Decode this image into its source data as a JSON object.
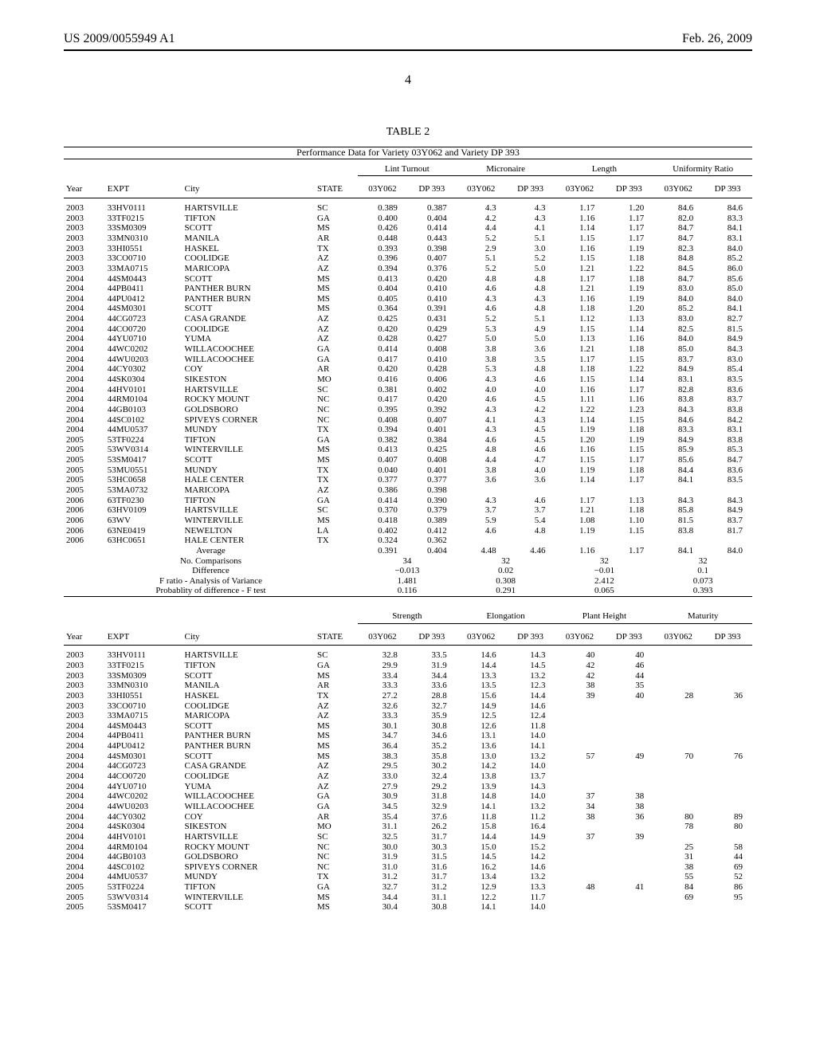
{
  "header": {
    "pub_no": "US 2009/0055949 A1",
    "pub_date": "Feb. 26, 2009"
  },
  "page_number": "4",
  "table": {
    "heading": "TABLE 2",
    "caption": "Performance Data for Variety 03Y062 and Variety DP 393",
    "col_headers": {
      "year": "Year",
      "expt": "EXPT",
      "city": "City",
      "state": "STATE",
      "v1": "03Y062",
      "v2": "DP 393"
    },
    "section1": {
      "groups": [
        "Lint Turnout",
        "Micronaire",
        "Length",
        "Uniformity Ratio"
      ],
      "rows": [
        [
          "2003",
          "33HV0111",
          "HARTSVILLE",
          "SC",
          "0.389",
          "0.387",
          "4.3",
          "4.3",
          "1.17",
          "1.20",
          "84.6",
          "84.6"
        ],
        [
          "2003",
          "33TF0215",
          "TIFTON",
          "GA",
          "0.400",
          "0.404",
          "4.2",
          "4.3",
          "1.16",
          "1.17",
          "82.0",
          "83.3"
        ],
        [
          "2003",
          "33SM0309",
          "SCOTT",
          "MS",
          "0.426",
          "0.414",
          "4.4",
          "4.1",
          "1.14",
          "1.17",
          "84.7",
          "84.1"
        ],
        [
          "2003",
          "33MN0310",
          "MANILA",
          "AR",
          "0.448",
          "0.443",
          "5.2",
          "5.1",
          "1.15",
          "1.17",
          "84.7",
          "83.1"
        ],
        [
          "2003",
          "33HI0551",
          "HASKEL",
          "TX",
          "0.393",
          "0.398",
          "2.9",
          "3.0",
          "1.16",
          "1.19",
          "82.3",
          "84.0"
        ],
        [
          "2003",
          "33CO0710",
          "COOLIDGE",
          "AZ",
          "0.396",
          "0.407",
          "5.1",
          "5.2",
          "1.15",
          "1.18",
          "84.8",
          "85.2"
        ],
        [
          "2003",
          "33MA0715",
          "MARICOPA",
          "AZ",
          "0.394",
          "0.376",
          "5.2",
          "5.0",
          "1.21",
          "1.22",
          "84.5",
          "86.0"
        ],
        [
          "2004",
          "44SM0443",
          "SCOTT",
          "MS",
          "0.413",
          "0.420",
          "4.8",
          "4.8",
          "1.17",
          "1.18",
          "84.7",
          "85.6"
        ],
        [
          "2004",
          "44PB0411",
          "PANTHER BURN",
          "MS",
          "0.404",
          "0.410",
          "4.6",
          "4.8",
          "1.21",
          "1.19",
          "83.0",
          "85.0"
        ],
        [
          "2004",
          "44PU0412",
          "PANTHER BURN",
          "MS",
          "0.405",
          "0.410",
          "4.3",
          "4.3",
          "1.16",
          "1.19",
          "84.0",
          "84.0"
        ],
        [
          "2004",
          "44SM0301",
          "SCOTT",
          "MS",
          "0.364",
          "0.391",
          "4.6",
          "4.8",
          "1.18",
          "1.20",
          "85.2",
          "84.1"
        ],
        [
          "2004",
          "44CG0723",
          "CASA GRANDE",
          "AZ",
          "0.425",
          "0.431",
          "5.2",
          "5.1",
          "1.12",
          "1.13",
          "83.0",
          "82.7"
        ],
        [
          "2004",
          "44CO0720",
          "COOLIDGE",
          "AZ",
          "0.420",
          "0.429",
          "5.3",
          "4.9",
          "1.15",
          "1.14",
          "82.5",
          "81.5"
        ],
        [
          "2004",
          "44YU0710",
          "YUMA",
          "AZ",
          "0.428",
          "0.427",
          "5.0",
          "5.0",
          "1.13",
          "1.16",
          "84.0",
          "84.9"
        ],
        [
          "2004",
          "44WC0202",
          "WILLACOOCHEE",
          "GA",
          "0.414",
          "0.408",
          "3.8",
          "3.6",
          "1.21",
          "1.18",
          "85.0",
          "84.3"
        ],
        [
          "2004",
          "44WU0203",
          "WILLACOOCHEE",
          "GA",
          "0.417",
          "0.410",
          "3.8",
          "3.5",
          "1.17",
          "1.15",
          "83.7",
          "83.0"
        ],
        [
          "2004",
          "44CY0302",
          "COY",
          "AR",
          "0.420",
          "0.428",
          "5.3",
          "4.8",
          "1.18",
          "1.22",
          "84.9",
          "85.4"
        ],
        [
          "2004",
          "44SK0304",
          "SIKESTON",
          "MO",
          "0.416",
          "0.406",
          "4.3",
          "4.6",
          "1.15",
          "1.14",
          "83.1",
          "83.5"
        ],
        [
          "2004",
          "44HV0101",
          "HARTSVILLE",
          "SC",
          "0.381",
          "0.402",
          "4.0",
          "4.0",
          "1.16",
          "1.17",
          "82.8",
          "83.6"
        ],
        [
          "2004",
          "44RM0104",
          "ROCKY MOUNT",
          "NC",
          "0.417",
          "0.420",
          "4.6",
          "4.5",
          "1.11",
          "1.16",
          "83.8",
          "83.7"
        ],
        [
          "2004",
          "44GB0103",
          "GOLDSBORO",
          "NC",
          "0.395",
          "0.392",
          "4.3",
          "4.2",
          "1.22",
          "1.23",
          "84.3",
          "83.8"
        ],
        [
          "2004",
          "44SC0102",
          "SPIVEYS CORNER",
          "NC",
          "0.408",
          "0.407",
          "4.1",
          "4.3",
          "1.14",
          "1.15",
          "84.6",
          "84.2"
        ],
        [
          "2004",
          "44MU0537",
          "MUNDY",
          "TX",
          "0.394",
          "0.401",
          "4.3",
          "4.5",
          "1.19",
          "1.18",
          "83.3",
          "83.1"
        ],
        [
          "2005",
          "53TF0224",
          "TIFTON",
          "GA",
          "0.382",
          "0.384",
          "4.6",
          "4.5",
          "1.20",
          "1.19",
          "84.9",
          "83.8"
        ],
        [
          "2005",
          "53WV0314",
          "WINTERVILLE",
          "MS",
          "0.413",
          "0.425",
          "4.8",
          "4.6",
          "1.16",
          "1.15",
          "85.9",
          "85.3"
        ],
        [
          "2005",
          "53SM0417",
          "SCOTT",
          "MS",
          "0.407",
          "0.408",
          "4.4",
          "4.7",
          "1.15",
          "1.17",
          "85.6",
          "84.7"
        ],
        [
          "2005",
          "53MU0551",
          "MUNDY",
          "TX",
          "0.040",
          "0.401",
          "3.8",
          "4.0",
          "1.19",
          "1.18",
          "84.4",
          "83.6"
        ],
        [
          "2005",
          "53HC0658",
          "HALE CENTER",
          "TX",
          "0.377",
          "0.377",
          "3.6",
          "3.6",
          "1.14",
          "1.17",
          "84.1",
          "83.5"
        ],
        [
          "2005",
          "53MA0732",
          "MARICOPA",
          "AZ",
          "0.386",
          "0.398",
          "",
          "",
          "",
          "",
          "",
          ""
        ],
        [
          "2006",
          "63TF0230",
          "TIFTON",
          "GA",
          "0.414",
          "0.390",
          "4.3",
          "4.6",
          "1.17",
          "1.13",
          "84.3",
          "84.3"
        ],
        [
          "2006",
          "63HV0109",
          "HARTSVILLE",
          "SC",
          "0.370",
          "0.379",
          "3.7",
          "3.7",
          "1.21",
          "1.18",
          "85.8",
          "84.9"
        ],
        [
          "2006",
          "63WV",
          "WINTERVILLE",
          "MS",
          "0.418",
          "0.389",
          "5.9",
          "5.4",
          "1.08",
          "1.10",
          "81.5",
          "83.7"
        ],
        [
          "2006",
          "63NE0419",
          "NEWELTON",
          "LA",
          "0.402",
          "0.412",
          "4.6",
          "4.8",
          "1.19",
          "1.15",
          "83.8",
          "81.7"
        ],
        [
          "2006",
          "63HC0651",
          "HALE CENTER",
          "TX",
          "0.324",
          "0.362",
          "",
          "",
          "",
          "",
          "",
          ""
        ]
      ],
      "summary": [
        [
          "Average",
          "0.391",
          "0.404",
          "4.48",
          "4.46",
          "1.16",
          "1.17",
          "84.1",
          "84.0"
        ],
        [
          "No. Comparisons",
          "34",
          "",
          "32",
          "",
          "32",
          "",
          "32",
          ""
        ],
        [
          "Difference",
          "−0.013",
          "",
          "0.02",
          "",
          "−0.01",
          "",
          "0.1",
          ""
        ],
        [
          "F ratio - Analysis of Variance",
          "1.481",
          "",
          "0.308",
          "",
          "2.412",
          "",
          "0.073",
          ""
        ],
        [
          "Probablity of difference - F test",
          "0.116",
          "",
          "0.291",
          "",
          "0.065",
          "",
          "0.393",
          ""
        ]
      ]
    },
    "section2": {
      "groups": [
        "Strength",
        "Elongation",
        "Plant Height",
        "Maturity"
      ],
      "rows": [
        [
          "2003",
          "33HV0111",
          "HARTSVILLE",
          "SC",
          "32.8",
          "33.5",
          "14.6",
          "14.3",
          "40",
          "40",
          "",
          ""
        ],
        [
          "2003",
          "33TF0215",
          "TIFTON",
          "GA",
          "29.9",
          "31.9",
          "14.4",
          "14.5",
          "42",
          "46",
          "",
          ""
        ],
        [
          "2003",
          "33SM0309",
          "SCOTT",
          "MS",
          "33.4",
          "34.4",
          "13.3",
          "13.2",
          "42",
          "44",
          "",
          ""
        ],
        [
          "2003",
          "33MN0310",
          "MANILA",
          "AR",
          "33.3",
          "33.6",
          "13.5",
          "12.3",
          "38",
          "35",
          "",
          ""
        ],
        [
          "2003",
          "33HI0551",
          "HASKEL",
          "TX",
          "27.2",
          "28.8",
          "15.6",
          "14.4",
          "39",
          "40",
          "28",
          "36"
        ],
        [
          "2003",
          "33CO0710",
          "COOLIDGE",
          "AZ",
          "32.6",
          "32.7",
          "14.9",
          "14.6",
          "",
          "",
          "",
          ""
        ],
        [
          "2003",
          "33MA0715",
          "MARICOPA",
          "AZ",
          "33.3",
          "35.9",
          "12.5",
          "12.4",
          "",
          "",
          "",
          ""
        ],
        [
          "2004",
          "44SM0443",
          "SCOTT",
          "MS",
          "30.1",
          "30.8",
          "12.6",
          "11.8",
          "",
          "",
          "",
          ""
        ],
        [
          "2004",
          "44PB0411",
          "PANTHER BURN",
          "MS",
          "34.7",
          "34.6",
          "13.1",
          "14.0",
          "",
          "",
          "",
          ""
        ],
        [
          "2004",
          "44PU0412",
          "PANTHER BURN",
          "MS",
          "36.4",
          "35.2",
          "13.6",
          "14.1",
          "",
          "",
          "",
          ""
        ],
        [
          "2004",
          "44SM0301",
          "SCOTT",
          "MS",
          "38.3",
          "35.8",
          "13.0",
          "13.2",
          "57",
          "49",
          "70",
          "76"
        ],
        [
          "2004",
          "44CG0723",
          "CASA GRANDE",
          "AZ",
          "29.5",
          "30.2",
          "14.2",
          "14.0",
          "",
          "",
          "",
          ""
        ],
        [
          "2004",
          "44CO0720",
          "COOLIDGE",
          "AZ",
          "33.0",
          "32.4",
          "13.8",
          "13.7",
          "",
          "",
          "",
          ""
        ],
        [
          "2004",
          "44YU0710",
          "YUMA",
          "AZ",
          "27.9",
          "29.2",
          "13.9",
          "14.3",
          "",
          "",
          "",
          ""
        ],
        [
          "2004",
          "44WC0202",
          "WILLACOOCHEE",
          "GA",
          "30.9",
          "31.8",
          "14.8",
          "14.0",
          "37",
          "38",
          "",
          ""
        ],
        [
          "2004",
          "44WU0203",
          "WILLACOOCHEE",
          "GA",
          "34.5",
          "32.9",
          "14.1",
          "13.2",
          "34",
          "38",
          "",
          ""
        ],
        [
          "2004",
          "44CY0302",
          "COY",
          "AR",
          "35.4",
          "37.6",
          "11.8",
          "11.2",
          "38",
          "36",
          "80",
          "89"
        ],
        [
          "2004",
          "44SK0304",
          "SIKESTON",
          "MO",
          "31.1",
          "26.2",
          "15.8",
          "16.4",
          "",
          "",
          "78",
          "80"
        ],
        [
          "2004",
          "44HV0101",
          "HARTSVILLE",
          "SC",
          "32.5",
          "31.7",
          "14.4",
          "14.9",
          "37",
          "39",
          "",
          ""
        ],
        [
          "2004",
          "44RM0104",
          "ROCKY MOUNT",
          "NC",
          "30.0",
          "30.3",
          "15.0",
          "15.2",
          "",
          "",
          "25",
          "58"
        ],
        [
          "2004",
          "44GB0103",
          "GOLDSBORO",
          "NC",
          "31.9",
          "31.5",
          "14.5",
          "14.2",
          "",
          "",
          "31",
          "44"
        ],
        [
          "2004",
          "44SC0102",
          "SPIVEYS CORNER",
          "NC",
          "31.0",
          "31.6",
          "16.2",
          "14.6",
          "",
          "",
          "38",
          "69"
        ],
        [
          "2004",
          "44MU0537",
          "MUNDY",
          "TX",
          "31.2",
          "31.7",
          "13.4",
          "13.2",
          "",
          "",
          "55",
          "52"
        ],
        [
          "2005",
          "53TF0224",
          "TIFTON",
          "GA",
          "32.7",
          "31.2",
          "12.9",
          "13.3",
          "48",
          "41",
          "84",
          "86"
        ],
        [
          "2005",
          "53WV0314",
          "WINTERVILLE",
          "MS",
          "34.4",
          "31.1",
          "12.2",
          "11.7",
          "",
          "",
          "69",
          "95"
        ],
        [
          "2005",
          "53SM0417",
          "SCOTT",
          "MS",
          "30.4",
          "30.8",
          "14.1",
          "14.0",
          "",
          "",
          "",
          ""
        ]
      ]
    }
  }
}
